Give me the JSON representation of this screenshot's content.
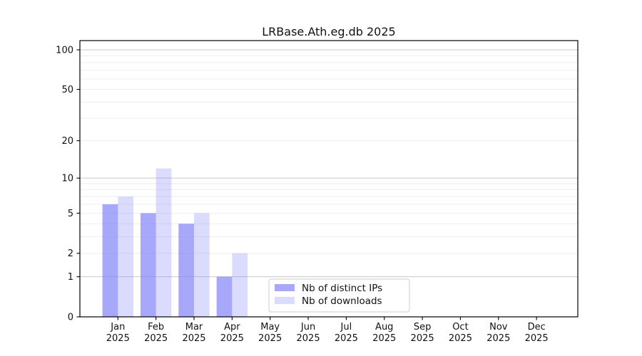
{
  "title": "LRBase.Ath.eg.db 2025",
  "colors": {
    "bar_base": "#8383f8",
    "ips_alpha": 0.7,
    "downloads_alpha": 0.29,
    "grid_minor": "#ededed",
    "grid_major": "#c9c9c9",
    "spine": "#000000",
    "tick_label": "#111111",
    "legend_border": "#cccccc",
    "legend_bg": "#ffffff"
  },
  "chart_data": {
    "type": "bar",
    "title": "LRBase.Ath.eg.db 2025",
    "categories": [
      "Jan",
      "Feb",
      "Mar",
      "Apr",
      "May",
      "Jun",
      "Jul",
      "Aug",
      "Sep",
      "Oct",
      "Nov",
      "Dec"
    ],
    "year_label": "2025",
    "series": [
      {
        "name": "Nb of distinct IPs",
        "values": [
          6,
          5,
          4,
          1,
          0,
          0,
          0,
          0,
          0,
          0,
          0,
          0
        ]
      },
      {
        "name": "Nb of downloads",
        "values": [
          7,
          12,
          5,
          2,
          0,
          0,
          0,
          0,
          0,
          0,
          0,
          0
        ]
      }
    ],
    "yscale": "log10(1+x)",
    "y_ticks": [
      0,
      1,
      2,
      5,
      10,
      20,
      50,
      100
    ],
    "grid_minor_values": [
      2,
      3,
      4,
      5,
      6,
      7,
      8,
      9,
      20,
      30,
      40,
      50,
      60,
      70,
      80,
      90
    ],
    "grid_major_values": [
      1,
      10,
      100
    ],
    "ylim_top": 117,
    "grid": "on",
    "legend_position": "bottom-center",
    "xlabel": "",
    "ylabel": ""
  }
}
